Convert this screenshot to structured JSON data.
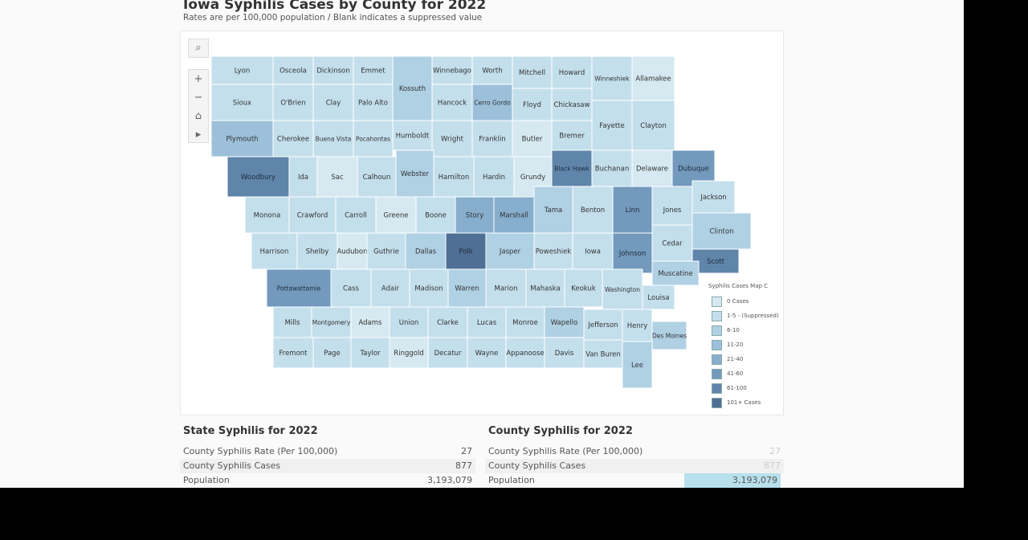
{
  "header": {
    "title": "Iowa Syphilis Cases by County for 2022",
    "subtitle": "Rates are per 100,000 population / Blank indicates a suppressed value"
  },
  "controls": {
    "search": "⌕",
    "zoom_in": "+",
    "zoom_out": "−",
    "home": "⌂",
    "play": "▸"
  },
  "legend": {
    "title": "Syphilis Cases Map C",
    "items": [
      {
        "label": "0 Cases",
        "color": "#d6e9f0"
      },
      {
        "label": "1-5 - (Suppressed)",
        "color": "#c4dfec"
      },
      {
        "label": "6-10",
        "color": "#b0d0e4"
      },
      {
        "label": "11-20",
        "color": "#9cc0da"
      },
      {
        "label": "21-40",
        "color": "#87aecd"
      },
      {
        "label": "41-60",
        "color": "#7399bd"
      },
      {
        "label": "61-100",
        "color": "#6085ab"
      },
      {
        "label": "101+ Cases",
        "color": "#4f6f94"
      }
    ]
  },
  "counties": [
    {
      "name": "Lyon",
      "level": 1
    },
    {
      "name": "Osceola",
      "level": 1
    },
    {
      "name": "Dickinson",
      "level": 1
    },
    {
      "name": "Emmet",
      "level": 1
    },
    {
      "name": "Kossuth",
      "level": 2
    },
    {
      "name": "Winnebago",
      "level": 1
    },
    {
      "name": "Worth",
      "level": 1
    },
    {
      "name": "Mitchell",
      "level": 1
    },
    {
      "name": "Howard",
      "level": 1
    },
    {
      "name": "Winneshiek",
      "level": 1
    },
    {
      "name": "Allamakee",
      "level": 0
    },
    {
      "name": "Sioux",
      "level": 1
    },
    {
      "name": "O'Brien",
      "level": 1
    },
    {
      "name": "Clay",
      "level": 1
    },
    {
      "name": "Palo Alto",
      "level": 1
    },
    {
      "name": "Hancock",
      "level": 1
    },
    {
      "name": "Cerro Gordo",
      "level": 3
    },
    {
      "name": "Floyd",
      "level": 1
    },
    {
      "name": "Chickasaw",
      "level": 1
    },
    {
      "name": "Fayette",
      "level": 1
    },
    {
      "name": "Clayton",
      "level": 1
    },
    {
      "name": "Plymouth",
      "level": 3
    },
    {
      "name": "Cherokee",
      "level": 1
    },
    {
      "name": "Buena Vista",
      "level": 1
    },
    {
      "name": "Pocahontas",
      "level": 1
    },
    {
      "name": "Humboldt",
      "level": 1
    },
    {
      "name": "Wright",
      "level": 1
    },
    {
      "name": "Franklin",
      "level": 1
    },
    {
      "name": "Butler",
      "level": 0
    },
    {
      "name": "Bremer",
      "level": 1
    },
    {
      "name": "Woodbury",
      "level": 6
    },
    {
      "name": "Ida",
      "level": 1
    },
    {
      "name": "Sac",
      "level": 0
    },
    {
      "name": "Calhoun",
      "level": 1
    },
    {
      "name": "Webster",
      "level": 2
    },
    {
      "name": "Hamilton",
      "level": 1
    },
    {
      "name": "Hardin",
      "level": 1
    },
    {
      "name": "Grundy",
      "level": 0
    },
    {
      "name": "Black Hawk",
      "level": 6
    },
    {
      "name": "Buchanan",
      "level": 1
    },
    {
      "name": "Delaware",
      "level": 0
    },
    {
      "name": "Dubuque",
      "level": 5
    },
    {
      "name": "Monona",
      "level": 1
    },
    {
      "name": "Crawford",
      "level": 1
    },
    {
      "name": "Carroll",
      "level": 1
    },
    {
      "name": "Greene",
      "level": 0
    },
    {
      "name": "Boone",
      "level": 1
    },
    {
      "name": "Story",
      "level": 4
    },
    {
      "name": "Marshall",
      "level": 4
    },
    {
      "name": "Tama",
      "level": 2
    },
    {
      "name": "Benton",
      "level": 1
    },
    {
      "name": "Linn",
      "level": 5
    },
    {
      "name": "Jones",
      "level": 1
    },
    {
      "name": "Jackson",
      "level": 1
    },
    {
      "name": "Harrison",
      "level": 1
    },
    {
      "name": "Shelby",
      "level": 1
    },
    {
      "name": "Audubon",
      "level": 0
    },
    {
      "name": "Guthrie",
      "level": 1
    },
    {
      "name": "Dallas",
      "level": 2
    },
    {
      "name": "Polk",
      "level": 7
    },
    {
      "name": "Jasper",
      "level": 2
    },
    {
      "name": "Poweshiek",
      "level": 1
    },
    {
      "name": "Iowa",
      "level": 1
    },
    {
      "name": "Johnson",
      "level": 5
    },
    {
      "name": "Cedar",
      "level": 1
    },
    {
      "name": "Clinton",
      "level": 2
    },
    {
      "name": "Scott",
      "level": 6
    },
    {
      "name": "Pottawattamie",
      "level": 5
    },
    {
      "name": "Cass",
      "level": 1
    },
    {
      "name": "Adair",
      "level": 1
    },
    {
      "name": "Madison",
      "level": 1
    },
    {
      "name": "Warren",
      "level": 2
    },
    {
      "name": "Marion",
      "level": 1
    },
    {
      "name": "Mahaska",
      "level": 1
    },
    {
      "name": "Keokuk",
      "level": 1
    },
    {
      "name": "Washington",
      "level": 1
    },
    {
      "name": "Muscatine",
      "level": 2
    },
    {
      "name": "Louisa",
      "level": 1
    },
    {
      "name": "Mills",
      "level": 1
    },
    {
      "name": "Montgomery",
      "level": 1
    },
    {
      "name": "Adams",
      "level": 0
    },
    {
      "name": "Union",
      "level": 1
    },
    {
      "name": "Clarke",
      "level": 1
    },
    {
      "name": "Lucas",
      "level": 1
    },
    {
      "name": "Monroe",
      "level": 1
    },
    {
      "name": "Wapello",
      "level": 2
    },
    {
      "name": "Jefferson",
      "level": 1
    },
    {
      "name": "Henry",
      "level": 1
    },
    {
      "name": "Des Moines",
      "level": 2
    },
    {
      "name": "Fremont",
      "level": 1
    },
    {
      "name": "Page",
      "level": 1
    },
    {
      "name": "Taylor",
      "level": 1
    },
    {
      "name": "Ringgold",
      "level": 0
    },
    {
      "name": "Decatur",
      "level": 1
    },
    {
      "name": "Wayne",
      "level": 1
    },
    {
      "name": "Appanoose",
      "level": 1
    },
    {
      "name": "Davis",
      "level": 1
    },
    {
      "name": "Van Buren",
      "level": 1
    },
    {
      "name": "Lee",
      "level": 2
    }
  ],
  "state": {
    "title": "State Syphilis for 2022",
    "rows": [
      {
        "label": "County Syphilis Rate (Per 100,000)",
        "value": "27"
      },
      {
        "label": "County Syphilis Cases",
        "value": "877"
      },
      {
        "label": "Population",
        "value": "3,193,079"
      }
    ]
  },
  "county": {
    "title": "County Syphilis for 2022",
    "rows": [
      {
        "label": "County Syphilis Rate (Per 100,000)",
        "value": "27"
      },
      {
        "label": "County Syphilis Cases",
        "value": "877"
      },
      {
        "label": "Population",
        "value": "3,193,079"
      }
    ]
  }
}
